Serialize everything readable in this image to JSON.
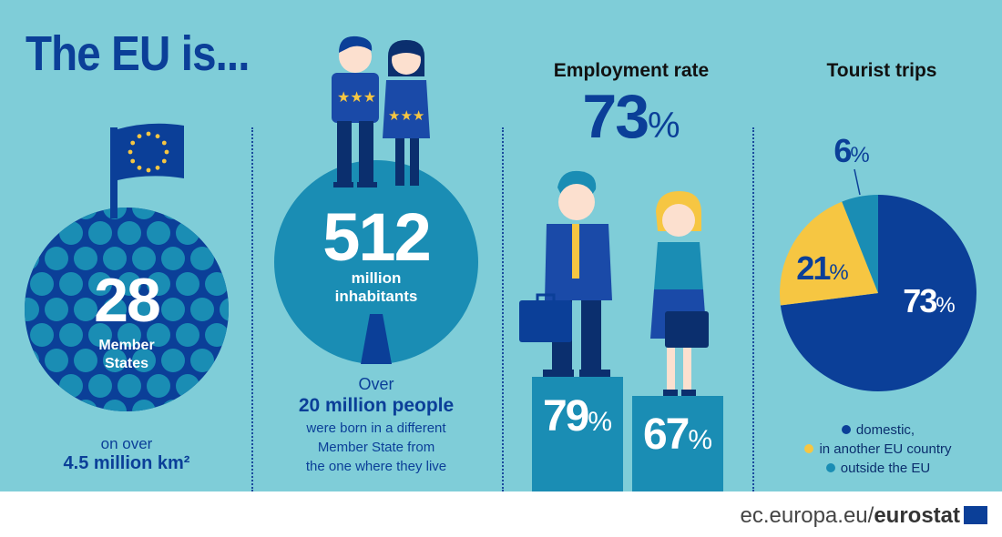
{
  "title": "The EU is...",
  "member_states": {
    "count": "28",
    "label_line1": "Member",
    "label_line2": "States",
    "area_prefix": "on over",
    "area_value": "4.5 million km²"
  },
  "population": {
    "count": "512",
    "unit": "million",
    "label": "inhabitants",
    "over": "Over",
    "born_abroad": "20 million people",
    "desc_line1": "were born in a different",
    "desc_line2": "Member State from",
    "desc_line3": "the one where they live"
  },
  "employment": {
    "title": "Employment rate",
    "overall": "73",
    "men": "79",
    "women": "67",
    "percent_sign": "%"
  },
  "tourism": {
    "title": "Tourist trips",
    "chart_data": {
      "type": "pie",
      "slices": [
        {
          "label": "domestic,",
          "value": 73,
          "display": "73",
          "color": "#0b3f98"
        },
        {
          "label": "in another EU country",
          "value": 21,
          "display": "21",
          "color": "#f6c642"
        },
        {
          "label": "outside the EU",
          "value": 6,
          "display": "6",
          "color": "#1a8db4"
        }
      ]
    }
  },
  "footer": {
    "url_prefix": "ec.europa.eu/",
    "url_bold": "eurostat"
  },
  "colors": {
    "background": "#7fcdd8",
    "navy": "#0b3f98",
    "teal": "#1a8db4",
    "yellow": "#f6c642",
    "white": "#ffffff"
  }
}
